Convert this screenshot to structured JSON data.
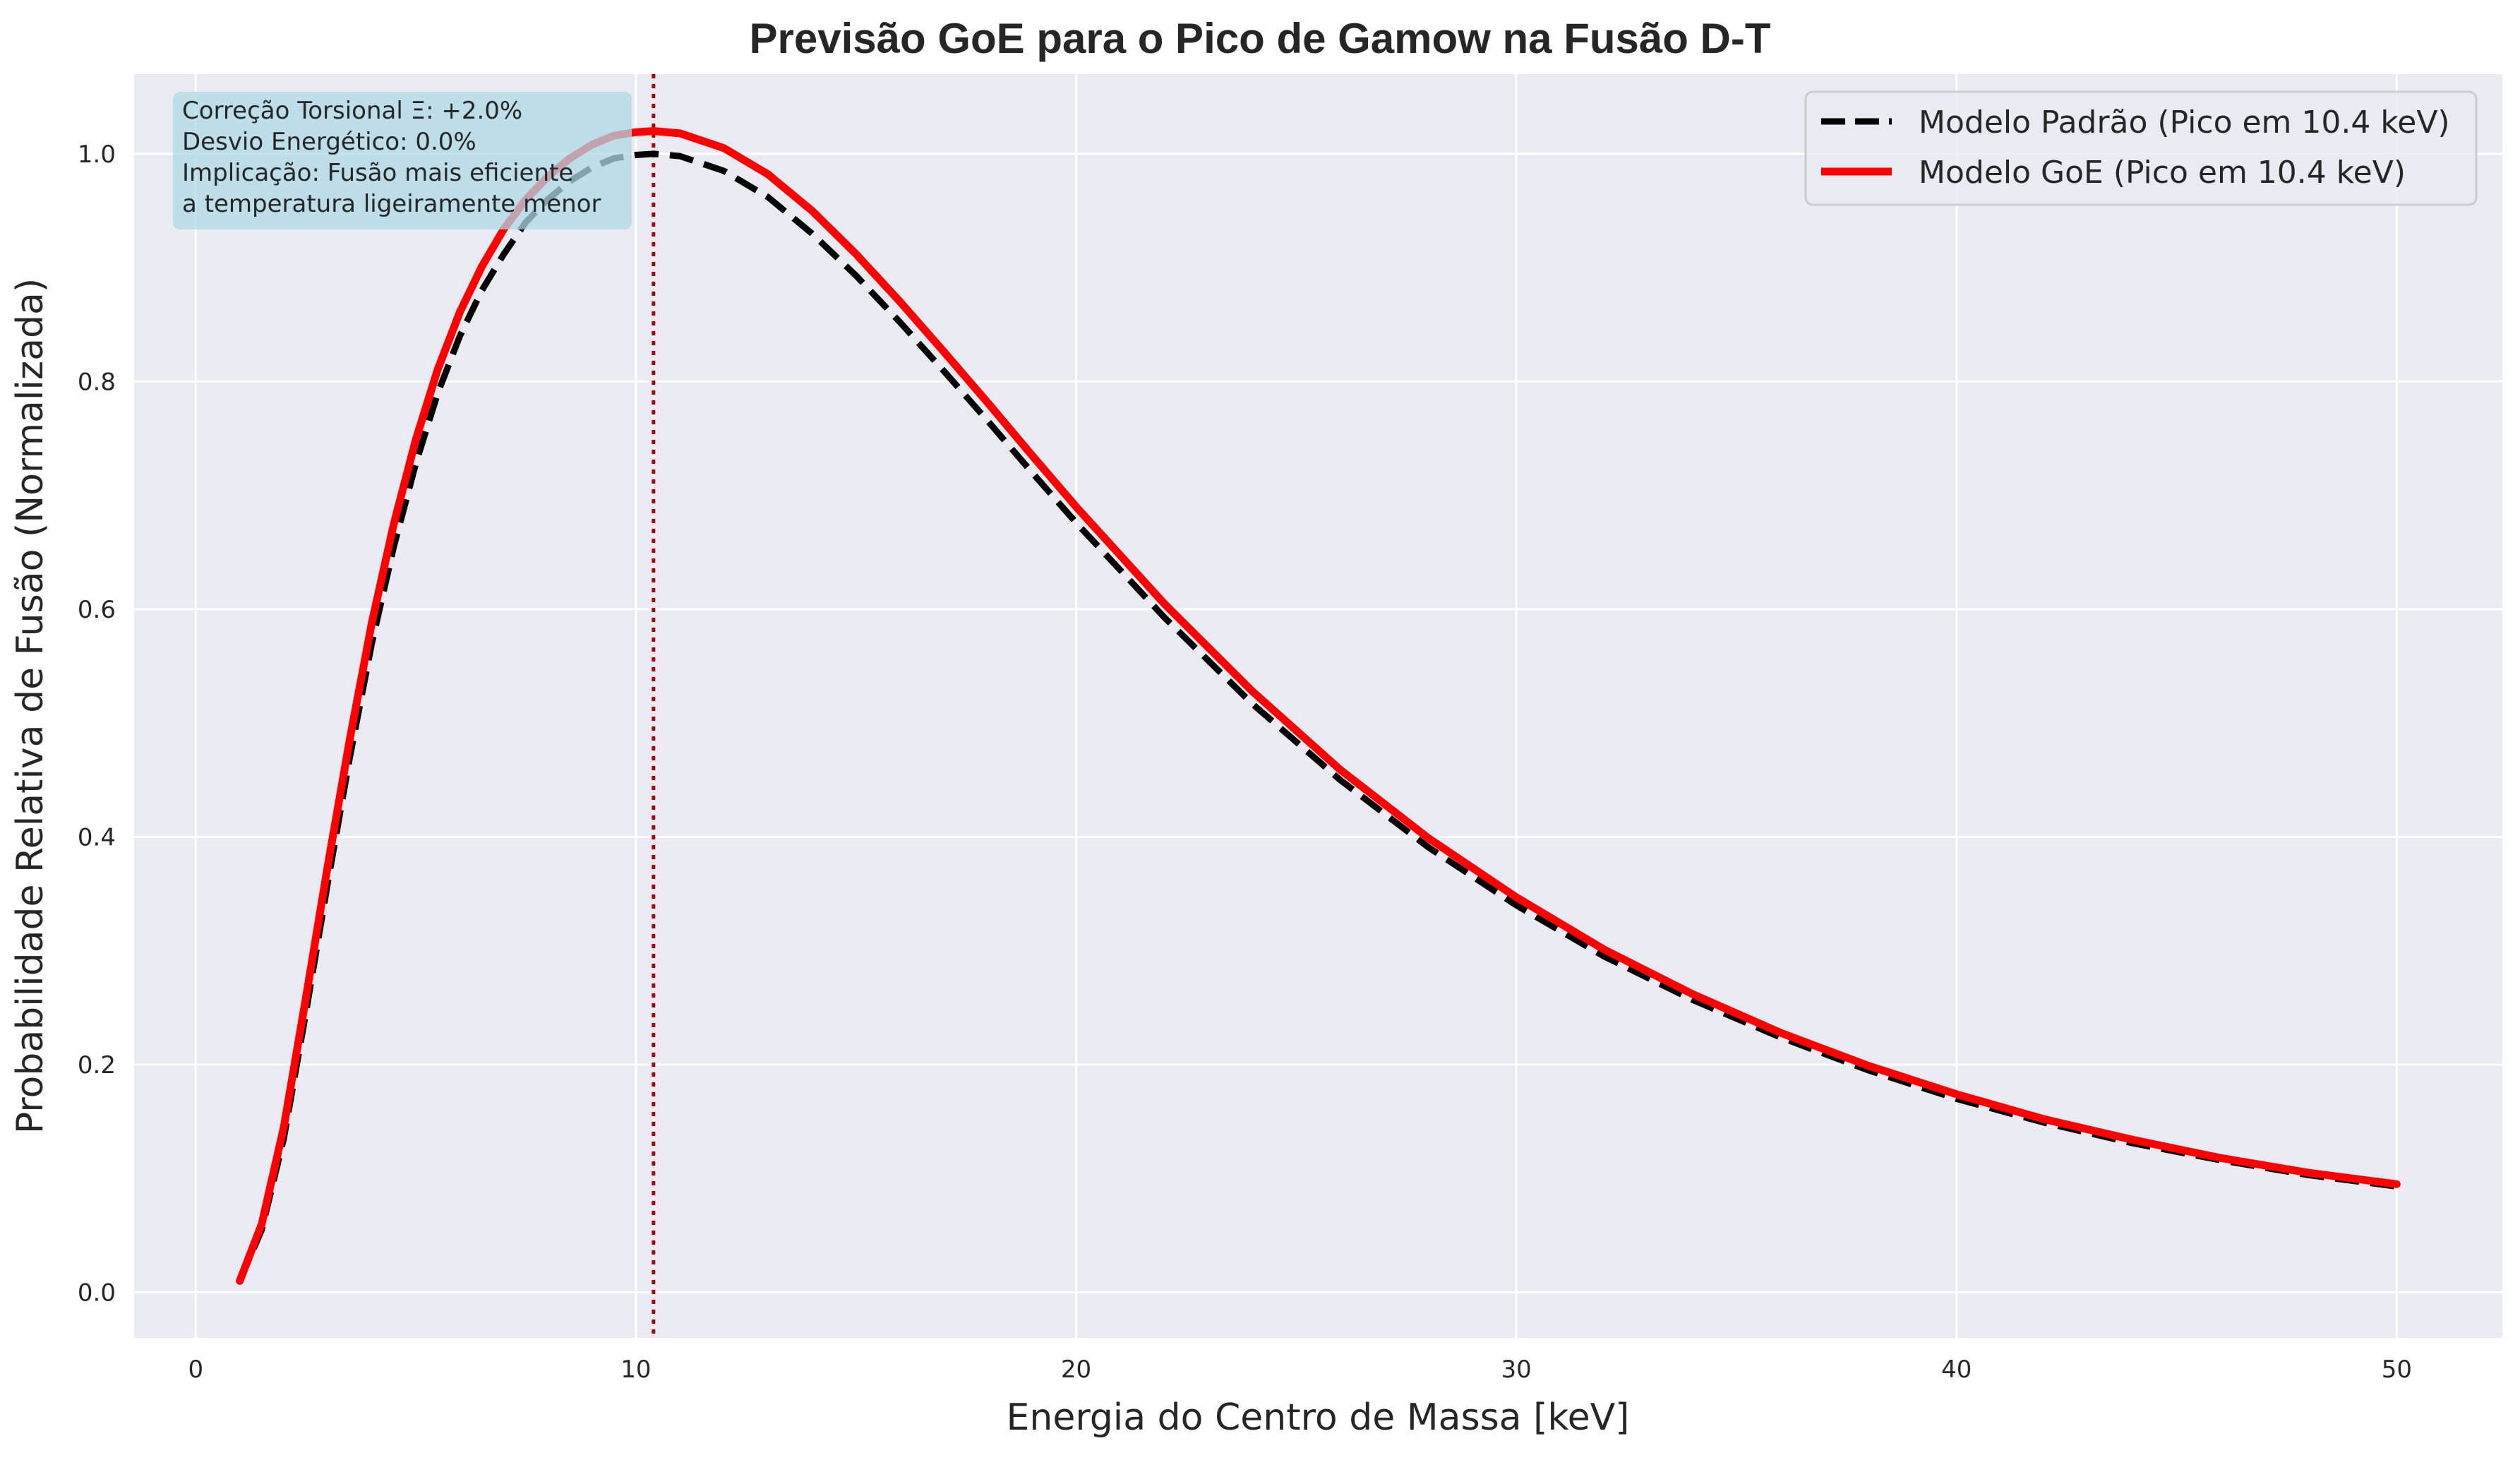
{
  "chart_data": {
    "type": "line",
    "title": "Previsão GoE para o Pico de Gamow na Fusão D-T",
    "xlabel": "Energia do Centro de Massa [keV]",
    "ylabel": "Probabilidade Relativa de Fusão (Normalizada)",
    "xlim": [
      -1.4,
      52.4
    ],
    "ylim": [
      -0.04,
      1.07
    ],
    "xticks": [
      0,
      10,
      20,
      30,
      40,
      50
    ],
    "yticks": [
      0.0,
      0.2,
      0.4,
      0.6,
      0.8,
      1.0
    ],
    "xtick_labels": [
      "0",
      "10",
      "20",
      "30",
      "40",
      "50"
    ],
    "ytick_labels": [
      "0.0",
      "0.2",
      "0.4",
      "0.6",
      "0.8",
      "1.0"
    ],
    "grid": true,
    "legend_position": "top-right",
    "x": [
      1,
      1.5,
      2,
      2.5,
      3,
      3.5,
      4,
      4.5,
      5,
      5.5,
      6,
      6.5,
      7,
      7.5,
      8,
      8.5,
      9,
      9.5,
      10,
      10.4,
      11,
      12,
      13,
      14,
      15,
      16,
      17,
      18,
      19,
      20,
      22,
      24,
      26,
      28,
      30,
      32,
      34,
      36,
      38,
      40,
      42,
      44,
      46,
      48,
      50
    ],
    "series": [
      {
        "name": "Modelo Padrão (Pico em 10.4 keV)",
        "color": "#000000",
        "style": "dashed",
        "values": [
          0.01,
          0.055,
          0.135,
          0.245,
          0.36,
          0.47,
          0.57,
          0.655,
          0.728,
          0.79,
          0.84,
          0.88,
          0.912,
          0.94,
          0.96,
          0.976,
          0.988,
          0.996,
          0.999,
          1.0,
          0.998,
          0.985,
          0.962,
          0.93,
          0.893,
          0.852,
          0.809,
          0.765,
          0.72,
          0.676,
          0.593,
          0.517,
          0.45,
          0.391,
          0.34,
          0.295,
          0.257,
          0.224,
          0.195,
          0.17,
          0.149,
          0.131,
          0.116,
          0.103,
          0.093
        ]
      },
      {
        "name": "Modelo GoE (Pico em 10.4 keV)",
        "color": "#ff0000",
        "style": "solid",
        "values": [
          0.01,
          0.06,
          0.145,
          0.258,
          0.375,
          0.486,
          0.588,
          0.675,
          0.749,
          0.811,
          0.861,
          0.901,
          0.934,
          0.96,
          0.98,
          0.996,
          1.008,
          1.016,
          1.019,
          1.02,
          1.018,
          1.005,
          0.982,
          0.95,
          0.912,
          0.87,
          0.826,
          0.781,
          0.735,
          0.69,
          0.605,
          0.528,
          0.459,
          0.399,
          0.347,
          0.301,
          0.262,
          0.228,
          0.199,
          0.174,
          0.152,
          0.134,
          0.118,
          0.105,
          0.095
        ]
      }
    ],
    "vertical_line": {
      "x": 10.4,
      "color": "#b00000",
      "style": "dotted"
    },
    "annotation": {
      "lines": [
        "Correção Torsional Ξ: +2.0%",
        "Desvio Energético: 0.0%",
        "Implicação: Fusão mais eficiente",
        "a temperatura ligeiramente menor"
      ],
      "background": "#add8e6"
    },
    "background": "#eaeaf2"
  }
}
